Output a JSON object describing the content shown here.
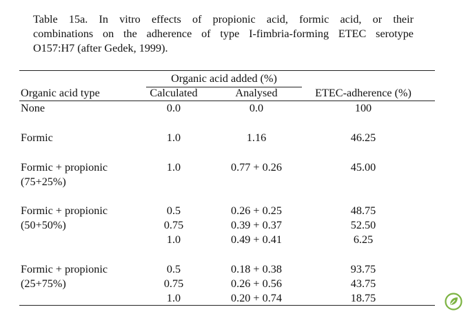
{
  "caption": [
    "Table 15a. In vitro effects of propionic acid, formic acid, or their",
    "combinations on the adherence of type I-fimbria-forming ETEC serotype",
    "O157:H7 (after Gedek, 1999)."
  ],
  "header": {
    "group": "Organic acid added (%)",
    "col1": "Organic acid type",
    "col2": "Calculated",
    "col3": "Analysed",
    "col4": "ETEC-adherence (%)"
  },
  "rows": [
    {
      "type": [
        "None"
      ],
      "values": [
        [
          "0.0",
          "0.0",
          "100"
        ]
      ]
    },
    {
      "type": [
        "Formic"
      ],
      "values": [
        [
          "1.0",
          "1.16",
          "46.25"
        ]
      ]
    },
    {
      "type": [
        "Formic + propionic",
        "(75+25%)"
      ],
      "values": [
        [
          "1.0",
          "0.77 + 0.26",
          "45.00"
        ]
      ]
    },
    {
      "type": [
        "Formic + propionic",
        "(50+50%)"
      ],
      "values": [
        [
          "0.5",
          "0.26 + 0.25",
          "48.75"
        ],
        [
          "0.75",
          "0.39 + 0.37",
          "52.50"
        ],
        [
          "1.0",
          "0.49 + 0.41",
          "6.25"
        ]
      ]
    },
    {
      "type": [
        "Formic + propionic",
        "(25+75%)"
      ],
      "values": [
        [
          "0.5",
          "0.18 + 0.38",
          "93.75"
        ],
        [
          "0.75",
          "0.26 + 0.56",
          "43.75"
        ],
        [
          "1.0",
          "0.20 + 0.74",
          "18.75"
        ]
      ]
    }
  ],
  "logo_icon": "leaf-logo-icon",
  "colors": {
    "logo": "#7cb342",
    "text": "#111111"
  }
}
